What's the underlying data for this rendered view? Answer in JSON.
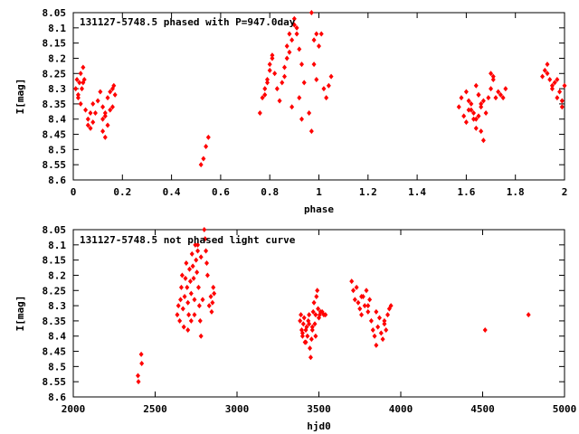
{
  "chart_data": [
    {
      "type": "scatter",
      "title": "131127-5748.5 phased with P=947.0day",
      "xlabel": "phase",
      "ylabel": "I[mag]",
      "xlim": [
        0,
        2
      ],
      "ylim": [
        8.6,
        8.05
      ],
      "y_reversed": true,
      "x_ticks": [
        "0",
        "0.2",
        "0.4",
        "0.6",
        "0.8",
        "1",
        "1.2",
        "1.4",
        "1.6",
        "1.8",
        "2"
      ],
      "y_ticks": [
        "8.05",
        "8.1",
        "8.15",
        "8.2",
        "8.25",
        "8.3",
        "8.35",
        "8.4",
        "8.45",
        "8.5",
        "8.55",
        "8.6"
      ],
      "grid": false,
      "marker_color": "#ff0000",
      "series": [
        {
          "x": [
            0.01,
            0.015,
            0.02,
            0.025,
            0.03,
            0.035,
            0.04,
            0.045,
            0.02,
            0.03,
            0.04,
            0.05,
            0.06,
            0.07,
            0.08,
            0.06,
            0.07,
            0.08,
            0.09,
            0.1,
            0.11,
            0.12,
            0.13,
            0.14,
            0.15,
            0.12,
            0.13,
            0.14,
            0.15,
            0.16,
            0.165,
            0.17,
            0.16,
            0.12,
            0.13,
            0.52,
            0.53,
            0.54,
            0.55,
            0.76,
            0.77,
            0.78,
            0.79,
            0.8,
            0.81,
            0.82,
            0.78,
            0.79,
            0.8,
            0.81,
            0.83,
            0.84,
            0.85,
            0.86,
            0.87,
            0.88,
            0.86,
            0.87,
            0.88,
            0.89,
            0.9,
            0.91,
            0.92,
            0.93,
            0.94,
            0.9,
            0.91,
            0.92,
            0.89,
            0.93,
            0.97,
            0.98,
            0.99,
            1.0,
            1.01,
            0.98,
            0.99,
            1.02,
            1.03,
            1.04,
            1.05,
            0.96,
            0.97,
            1.57,
            1.58,
            1.59,
            1.6,
            1.61,
            1.62,
            1.63,
            1.64,
            1.65,
            1.66,
            1.67,
            1.68,
            1.6,
            1.61,
            1.62,
            1.63,
            1.64,
            1.65,
            1.66,
            1.67,
            1.64,
            1.65,
            1.66,
            1.69,
            1.7,
            1.71,
            1.72,
            1.73,
            1.74,
            1.75,
            1.76,
            1.7,
            1.71,
            1.91,
            1.92,
            1.93,
            1.94,
            1.95,
            1.96,
            1.97,
            1.98,
            1.99,
            2.0,
            1.93,
            1.95,
            1.97,
            1.99
          ],
          "y": [
            8.3,
            8.27,
            8.32,
            8.28,
            8.25,
            8.3,
            8.23,
            8.27,
            8.33,
            8.35,
            8.28,
            8.37,
            8.42,
            8.38,
            8.35,
            8.4,
            8.43,
            8.41,
            8.38,
            8.34,
            8.31,
            8.36,
            8.39,
            8.42,
            8.37,
            8.44,
            8.46,
            8.33,
            8.31,
            8.3,
            8.29,
            8.32,
            8.36,
            8.4,
            8.38,
            8.55,
            8.53,
            8.49,
            8.46,
            8.38,
            8.33,
            8.3,
            8.27,
            8.22,
            8.19,
            8.25,
            8.32,
            8.28,
            8.24,
            8.2,
            8.3,
            8.34,
            8.28,
            8.23,
            8.16,
            8.12,
            8.26,
            8.2,
            8.18,
            8.14,
            8.09,
            8.12,
            8.17,
            8.22,
            8.28,
            8.07,
            8.1,
            8.33,
            8.36,
            8.4,
            8.05,
            8.14,
            8.12,
            8.16,
            8.12,
            8.22,
            8.27,
            8.3,
            8.33,
            8.29,
            8.26,
            8.38,
            8.44,
            8.36,
            8.33,
            8.39,
            8.41,
            8.37,
            8.35,
            8.38,
            8.4,
            8.32,
            8.36,
            8.34,
            8.38,
            8.31,
            8.34,
            8.37,
            8.4,
            8.43,
            8.39,
            8.44,
            8.47,
            8.29,
            8.32,
            8.35,
            8.33,
            8.3,
            8.27,
            8.33,
            8.31,
            8.32,
            8.33,
            8.3,
            8.25,
            8.26,
            8.26,
            8.24,
            8.22,
            8.27,
            8.3,
            8.28,
            8.33,
            8.31,
            8.34,
            8.29,
            8.25,
            8.29,
            8.27,
            8.36
          ]
        }
      ]
    },
    {
      "type": "scatter",
      "title": "131127-5748.5 not phased light curve",
      "xlabel": "hjd0",
      "ylabel": "I[mag]",
      "xlim": [
        2000,
        5000
      ],
      "ylim": [
        8.6,
        8.05
      ],
      "y_reversed": true,
      "x_ticks": [
        "2000",
        "2500",
        "3000",
        "3500",
        "4000",
        "4500",
        "5000"
      ],
      "y_ticks": [
        "8.05",
        "8.1",
        "8.15",
        "8.2",
        "8.25",
        "8.3",
        "8.35",
        "8.4",
        "8.45",
        "8.5",
        "8.55",
        "8.6"
      ],
      "grid": false,
      "marker_color": "#ff0000",
      "series": [
        {
          "x": [
            2395,
            2398,
            2415,
            2418,
            2635,
            2642,
            2650,
            2655,
            2660,
            2665,
            2670,
            2675,
            2680,
            2685,
            2690,
            2695,
            2700,
            2705,
            2710,
            2715,
            2720,
            2725,
            2730,
            2735,
            2740,
            2745,
            2750,
            2755,
            2760,
            2765,
            2770,
            2775,
            2780,
            2790,
            2800,
            2805,
            2810,
            2815,
            2820,
            2830,
            2840,
            2845,
            2850,
            2855,
            2860,
            2700,
            2720,
            2740,
            2760,
            2780,
            3385,
            3390,
            3395,
            3400,
            3405,
            3410,
            3415,
            3420,
            3425,
            3430,
            3435,
            3440,
            3445,
            3450,
            3455,
            3460,
            3465,
            3470,
            3475,
            3480,
            3485,
            3490,
            3495,
            3500,
            3505,
            3510,
            3520,
            3530,
            3540,
            3400,
            3420,
            3440,
            3460,
            3480,
            3700,
            3710,
            3720,
            3730,
            3740,
            3750,
            3760,
            3770,
            3780,
            3790,
            3800,
            3810,
            3820,
            3830,
            3840,
            3850,
            3860,
            3870,
            3880,
            3890,
            3900,
            3910,
            3920,
            3930,
            3940,
            3760,
            3800,
            3850,
            3900,
            4515,
            4780
          ],
          "y": [
            8.53,
            8.55,
            8.46,
            8.49,
            8.33,
            8.3,
            8.35,
            8.28,
            8.24,
            8.2,
            8.31,
            8.37,
            8.27,
            8.21,
            8.16,
            8.24,
            8.29,
            8.33,
            8.18,
            8.22,
            8.26,
            8.13,
            8.17,
            8.21,
            8.28,
            8.1,
            8.15,
            8.19,
            8.12,
            8.24,
            8.3,
            8.35,
            8.4,
            8.28,
            8.05,
            8.08,
            8.12,
            8.16,
            8.2,
            8.3,
            8.27,
            8.32,
            8.29,
            8.24,
            8.26,
            8.38,
            8.35,
            8.33,
            8.1,
            8.14,
            8.35,
            8.33,
            8.38,
            8.4,
            8.36,
            8.34,
            8.42,
            8.38,
            8.37,
            8.4,
            8.35,
            8.33,
            8.44,
            8.47,
            8.41,
            8.37,
            8.32,
            8.29,
            8.36,
            8.33,
            8.27,
            8.25,
            8.31,
            8.34,
            8.33,
            8.32,
            8.32,
            8.33,
            8.33,
            8.39,
            8.42,
            8.36,
            8.38,
            8.4,
            8.22,
            8.25,
            8.28,
            8.24,
            8.29,
            8.31,
            8.33,
            8.27,
            8.3,
            8.25,
            8.32,
            8.28,
            8.35,
            8.38,
            8.4,
            8.43,
            8.37,
            8.34,
            8.39,
            8.41,
            8.36,
            8.38,
            8.33,
            8.31,
            8.3,
            8.27,
            8.3,
            8.32,
            8.35,
            8.38,
            8.33
          ]
        }
      ]
    }
  ]
}
